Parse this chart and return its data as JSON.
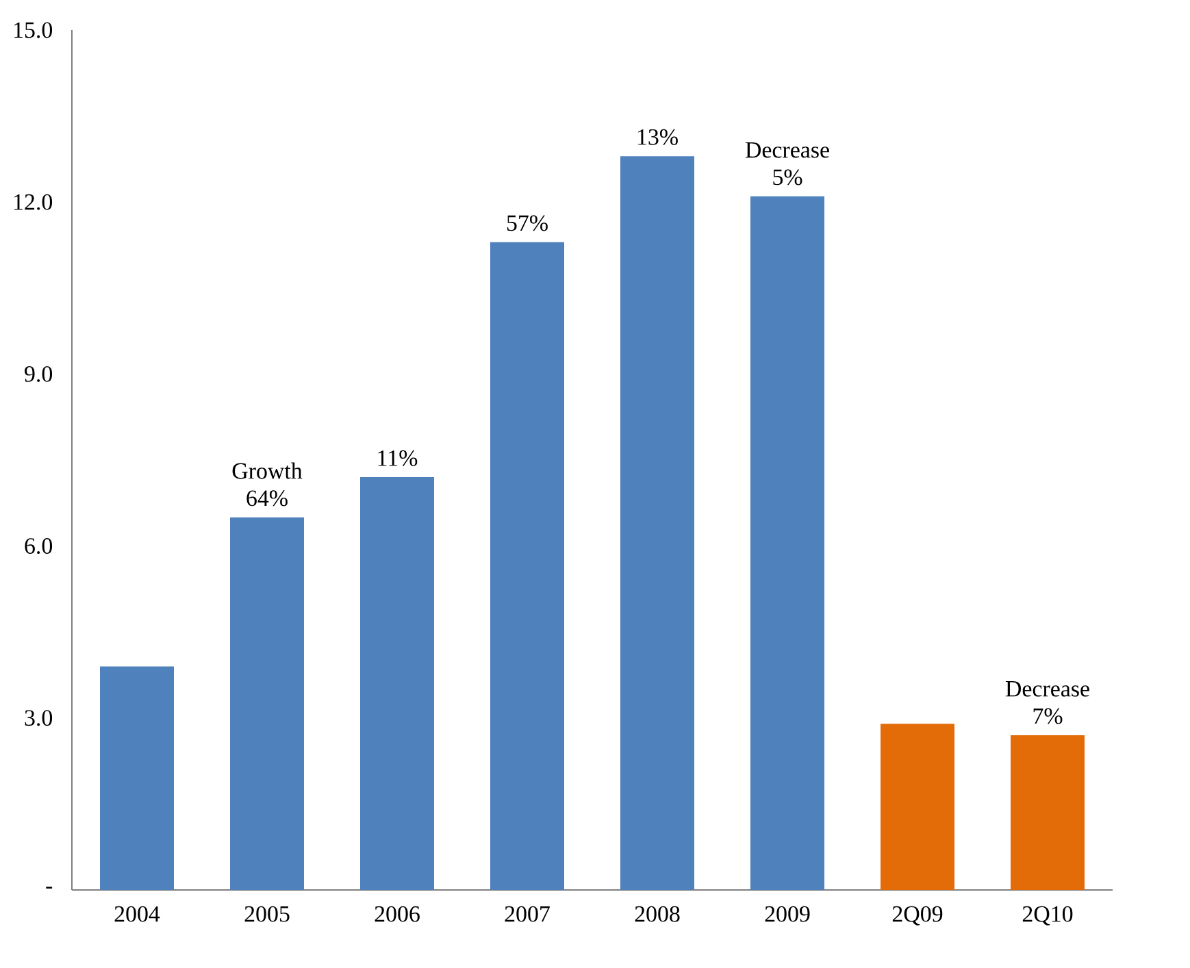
{
  "chart_data": {
    "type": "bar",
    "categories": [
      "2004",
      "2005",
      "2006",
      "2007",
      "2008",
      "2009",
      "2Q09",
      "2Q10"
    ],
    "values": [
      3.9,
      6.5,
      7.2,
      11.3,
      12.8,
      12.1,
      2.9,
      2.7
    ],
    "colors": [
      "#4f81bd",
      "#4f81bd",
      "#4f81bd",
      "#4f81bd",
      "#4f81bd",
      "#4f81bd",
      "#e36c09",
      "#e36c09"
    ],
    "ylim": [
      0,
      15
    ],
    "yticks": [
      {
        "value": 0,
        "label": "-"
      },
      {
        "value": 3,
        "label": "3.0"
      },
      {
        "value": 6,
        "label": "6.0"
      },
      {
        "value": 9,
        "label": "9.0"
      },
      {
        "value": 12,
        "label": "12.0"
      },
      {
        "value": 15,
        "label": "15.0"
      }
    ],
    "annotations": [
      {
        "text": "Growth 64%",
        "x": "2005",
        "y": 6.5
      },
      {
        "text": "11%",
        "x": "2006",
        "y": 7.2
      },
      {
        "text": "57%",
        "x": "2007",
        "y": 11.3
      },
      {
        "text": "13%",
        "x": "2008",
        "y": 12.8
      },
      {
        "text": "Decrease 5%",
        "x": "2009",
        "y": 12.1
      },
      {
        "text": "Decrease 7%",
        "x": "2Q10",
        "y": 2.7
      }
    ]
  }
}
